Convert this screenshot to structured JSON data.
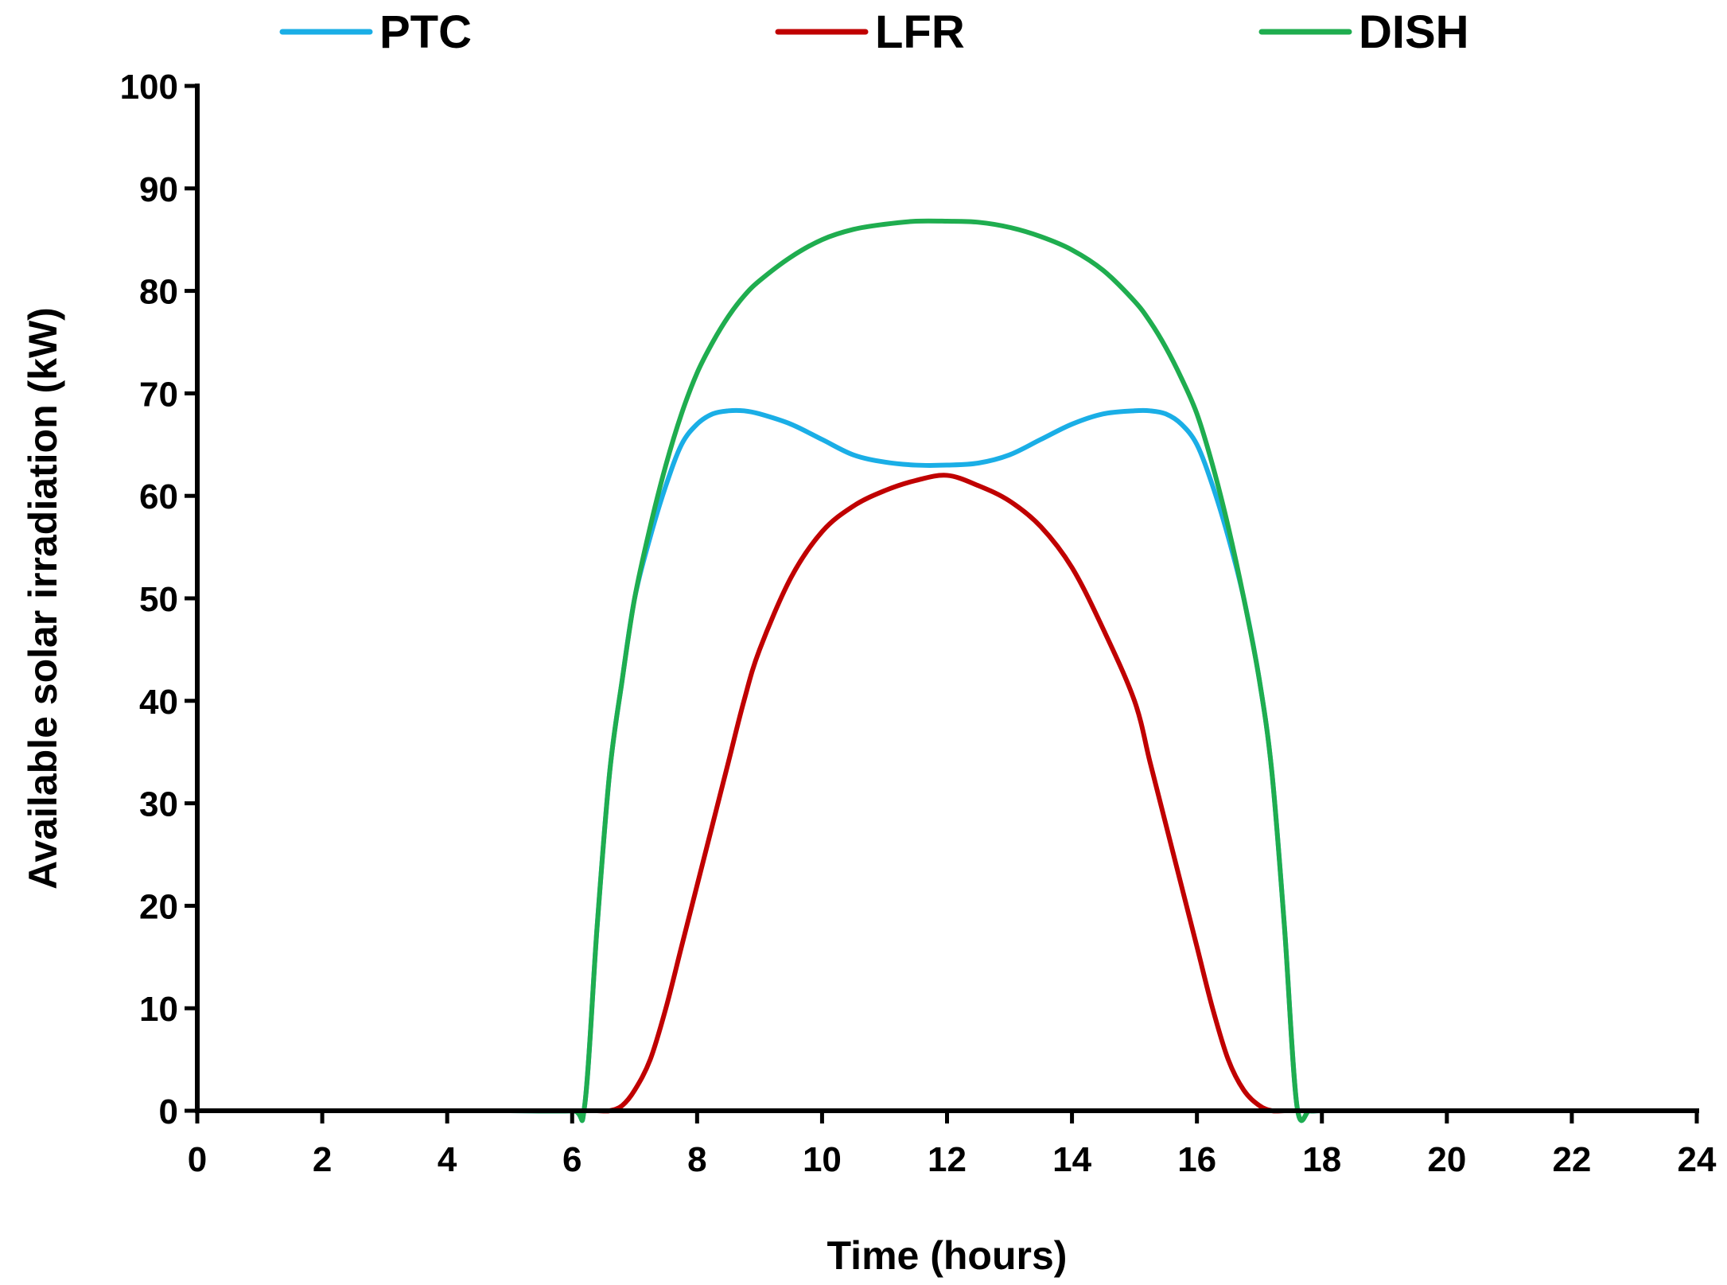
{
  "chart_data": {
    "type": "line",
    "title": "",
    "xlabel": "Time (hours)",
    "ylabel": "Available solar irradiation (kW)",
    "xlim": [
      0,
      24
    ],
    "ylim": [
      0,
      100
    ],
    "x_ticks": [
      0,
      2,
      4,
      6,
      8,
      10,
      12,
      14,
      16,
      18,
      20,
      22,
      24
    ],
    "y_ticks": [
      0,
      10,
      20,
      30,
      40,
      50,
      60,
      70,
      80,
      90,
      100
    ],
    "grid": false,
    "legend_position": "top",
    "x": [
      0,
      1,
      2,
      3,
      4,
      5,
      6,
      6.2,
      6.4,
      6.6,
      6.8,
      7,
      7.25,
      7.5,
      7.75,
      8,
      8.25,
      8.5,
      8.75,
      9,
      9.5,
      10,
      10.5,
      11,
      11.5,
      12,
      12.5,
      13,
      13.5,
      14,
      14.5,
      15,
      15.25,
      15.5,
      15.75,
      16,
      16.25,
      16.5,
      16.75,
      17,
      17.2,
      17.4,
      17.6,
      17.8,
      18,
      19,
      20,
      21,
      22,
      23,
      24
    ],
    "series": [
      {
        "name": "PTC",
        "color": "#1AAEE6",
        "values": [
          0,
          0,
          0,
          0,
          0,
          0,
          0,
          0.5,
          18,
          33,
          42,
          50,
          56,
          61,
          65,
          67,
          68,
          68.3,
          68.3,
          68,
          67,
          65.5,
          64,
          63.3,
          63,
          63,
          63.2,
          64,
          65.5,
          67,
          68,
          68.3,
          68.3,
          68,
          67,
          65,
          61,
          56,
          50,
          42,
          33,
          18,
          0.5,
          0,
          0,
          0,
          0,
          0,
          0,
          0,
          0
        ]
      },
      {
        "name": "LFR",
        "color": "#C00000",
        "values": [
          0,
          0,
          0,
          0,
          0,
          0,
          0,
          0,
          0,
          0,
          0.5,
          2,
          5,
          10,
          16,
          22,
          28,
          34,
          40,
          45,
          52,
          56.5,
          59,
          60.5,
          61.5,
          62,
          61,
          59.5,
          57,
          53,
          47,
          40,
          34,
          28,
          22,
          16,
          10,
          5,
          2,
          0.5,
          0,
          0,
          0,
          0,
          0,
          0,
          0,
          0,
          0,
          0,
          0
        ]
      },
      {
        "name": "DISH",
        "color": "#1FAD4F",
        "values": [
          0,
          0,
          0,
          0,
          0,
          0,
          0,
          0.5,
          18,
          33,
          42,
          50,
          57,
          63,
          68,
          72,
          75,
          77.5,
          79.5,
          81,
          83.3,
          85,
          86,
          86.5,
          86.8,
          86.8,
          86.7,
          86.2,
          85.3,
          84,
          82,
          79,
          77,
          74.5,
          71.5,
          68,
          63,
          57,
          50,
          42,
          33,
          18,
          0.5,
          0,
          0,
          0,
          0,
          0,
          0,
          0,
          0
        ]
      }
    ]
  }
}
